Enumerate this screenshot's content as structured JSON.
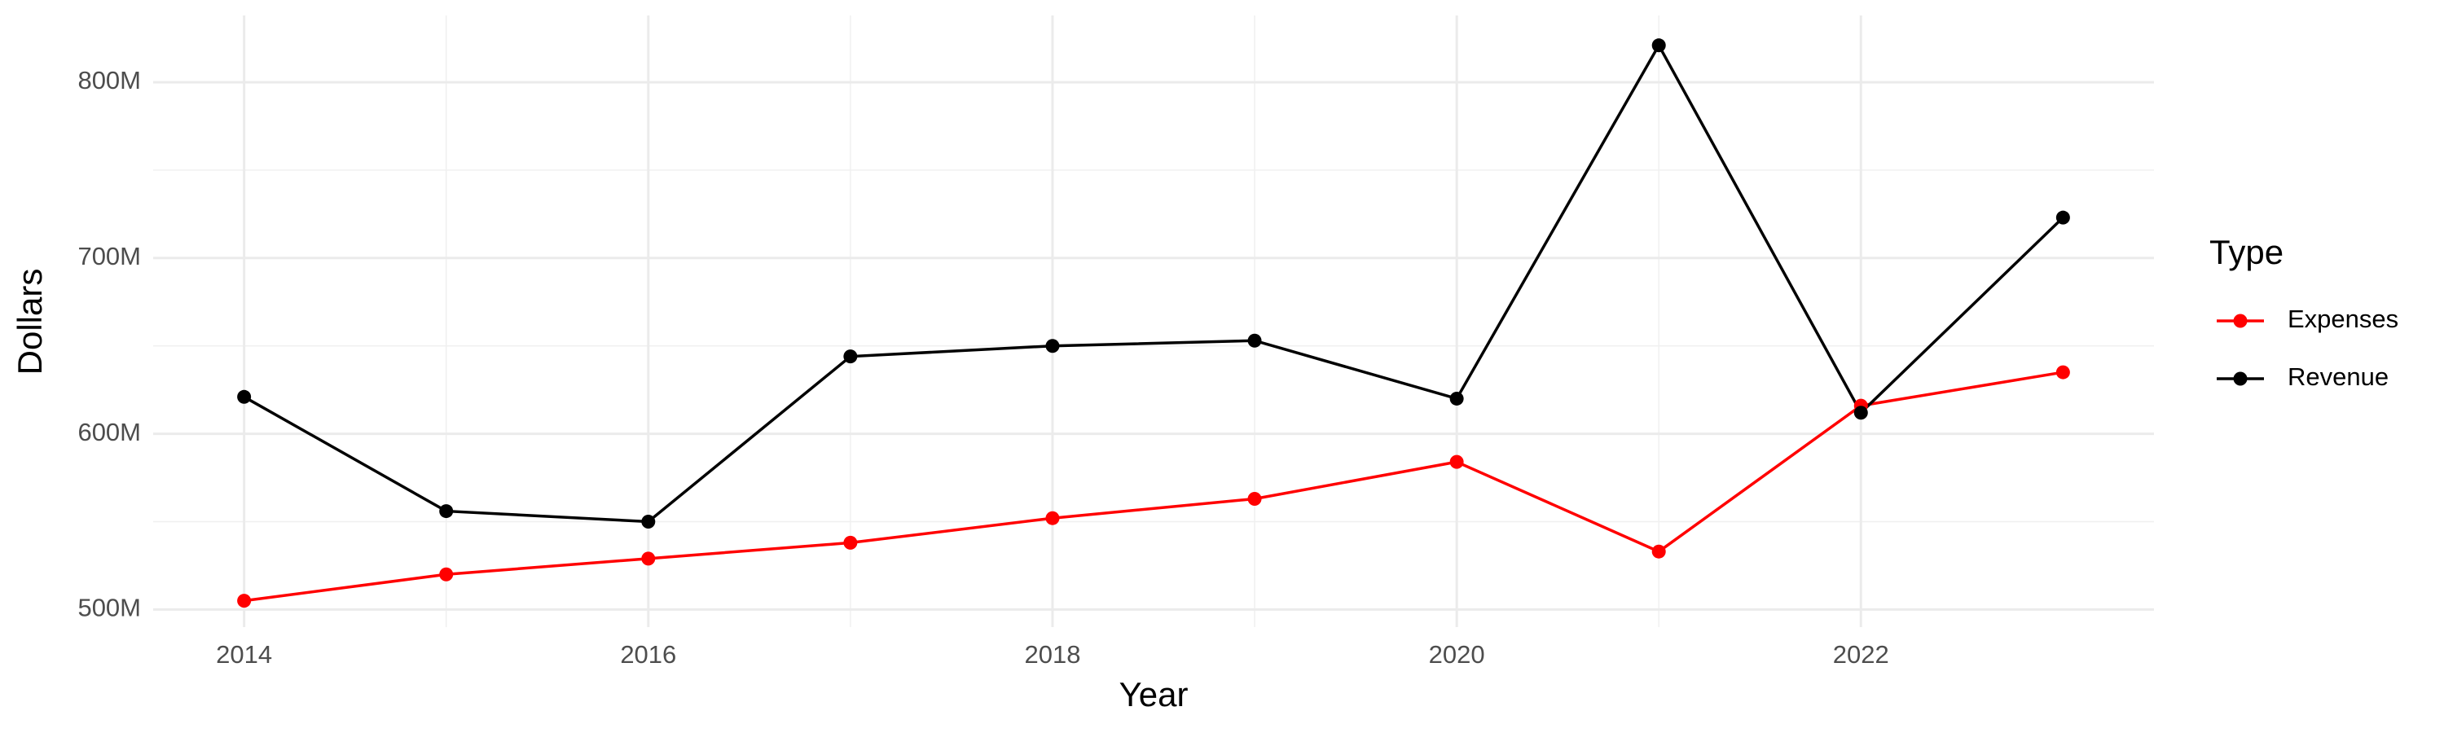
{
  "chart_data": {
    "type": "line",
    "x_label": "Year",
    "y_label": "Dollars",
    "legend_title": "Type",
    "x": [
      2014,
      2015,
      2016,
      2017,
      2018,
      2019,
      2020,
      2021,
      2022,
      2023
    ],
    "series": [
      {
        "name": "Expenses",
        "color": "#ff0000",
        "values": [
          505000000,
          520000000,
          529000000,
          538000000,
          552000000,
          563000000,
          584000000,
          533000000,
          616000000,
          635000000
        ]
      },
      {
        "name": "Revenue",
        "color": "#000000",
        "values": [
          621000000,
          556000000,
          550000000,
          644000000,
          650000000,
          653000000,
          620000000,
          821000000,
          612000000,
          723000000
        ]
      }
    ],
    "xlim": [
      2013.55,
      2023.45
    ],
    "xticks": [
      2014,
      2016,
      2018,
      2020,
      2022
    ],
    "ylim": [
      490000000,
      838000000
    ],
    "yticks": [
      {
        "value": 500000000,
        "label": "500M"
      },
      {
        "value": 600000000,
        "label": "600M"
      },
      {
        "value": 700000000,
        "label": "700M"
      },
      {
        "value": 800000000,
        "label": "800M"
      }
    ],
    "grid": true,
    "legend": "right"
  }
}
